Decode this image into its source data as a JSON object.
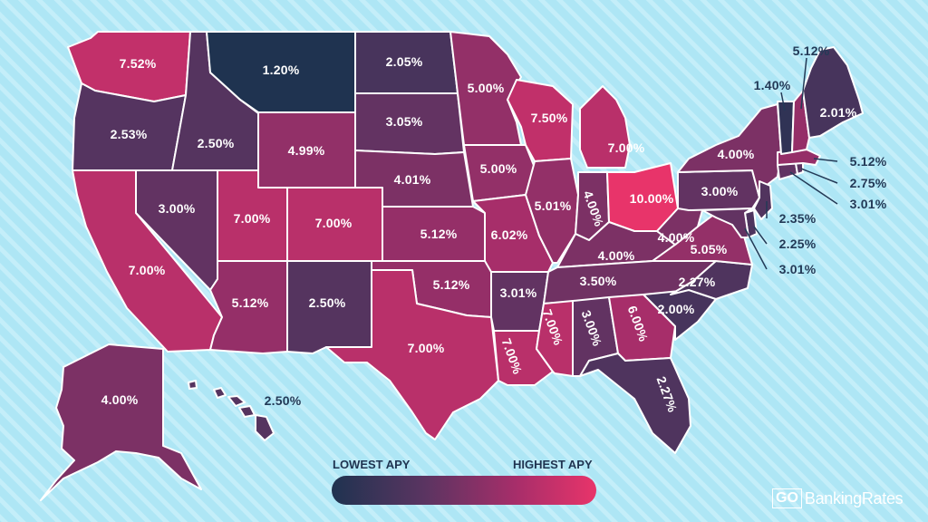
{
  "colors": {
    "background": "#aee6f5",
    "stripe": "#c4eef9",
    "lowest": "#1f3350",
    "highest": "#e8346a",
    "label_dark": "#233a57"
  },
  "legend": {
    "low_label": "LOWEST APY",
    "high_label": "HIGHEST APY"
  },
  "brand": {
    "go": "GO",
    "name": "BankingRates"
  },
  "states": [
    {
      "id": "WA",
      "apy": "7.52%"
    },
    {
      "id": "OR",
      "apy": "2.53%"
    },
    {
      "id": "CA",
      "apy": "7.00%"
    },
    {
      "id": "ID",
      "apy": "2.50%"
    },
    {
      "id": "NV",
      "apy": "3.00%"
    },
    {
      "id": "MT",
      "apy": "1.20%"
    },
    {
      "id": "WY",
      "apy": "4.99%"
    },
    {
      "id": "UT",
      "apy": "7.00%"
    },
    {
      "id": "AZ",
      "apy": "5.12%"
    },
    {
      "id": "CO",
      "apy": "7.00%"
    },
    {
      "id": "NM",
      "apy": "2.50%"
    },
    {
      "id": "ND",
      "apy": "2.05%"
    },
    {
      "id": "SD",
      "apy": "3.05%"
    },
    {
      "id": "NE",
      "apy": "4.01%"
    },
    {
      "id": "KS",
      "apy": "5.12%"
    },
    {
      "id": "OK",
      "apy": "5.12%"
    },
    {
      "id": "TX",
      "apy": "7.00%"
    },
    {
      "id": "MN",
      "apy": "5.00%"
    },
    {
      "id": "IA",
      "apy": "5.00%"
    },
    {
      "id": "MO",
      "apy": "6.02%"
    },
    {
      "id": "AR",
      "apy": "3.01%"
    },
    {
      "id": "LA",
      "apy": "7.00%"
    },
    {
      "id": "WI",
      "apy": "7.50%"
    },
    {
      "id": "IL",
      "apy": "5.01%"
    },
    {
      "id": "MI",
      "apy": "7.00%"
    },
    {
      "id": "IN",
      "apy": "4.00%"
    },
    {
      "id": "OH",
      "apy": "10.00%"
    },
    {
      "id": "KY",
      "apy": "4.00%"
    },
    {
      "id": "TN",
      "apy": "3.50%"
    },
    {
      "id": "MS",
      "apy": "7.00%"
    },
    {
      "id": "AL",
      "apy": "3.00%"
    },
    {
      "id": "GA",
      "apy": "6.00%"
    },
    {
      "id": "FL",
      "apy": "2.27%"
    },
    {
      "id": "SC",
      "apy": "2.00%"
    },
    {
      "id": "NC",
      "apy": "2.27%"
    },
    {
      "id": "VA",
      "apy": "5.05%"
    },
    {
      "id": "WV",
      "apy": "4.00%"
    },
    {
      "id": "PA",
      "apy": "3.00%"
    },
    {
      "id": "NY",
      "apy": "4.00%"
    },
    {
      "id": "VT",
      "apy": "1.40%"
    },
    {
      "id": "NH",
      "apy": "5.12%"
    },
    {
      "id": "ME",
      "apy": "2.01%"
    },
    {
      "id": "MA",
      "apy": "5.12%"
    },
    {
      "id": "RI",
      "apy": "2.75%"
    },
    {
      "id": "CT",
      "apy": "3.01%"
    },
    {
      "id": "NJ",
      "apy": "2.35%"
    },
    {
      "id": "DE",
      "apy": "2.25%"
    },
    {
      "id": "MD",
      "apy": "3.01%"
    },
    {
      "id": "AK",
      "apy": "4.00%"
    },
    {
      "id": "HI",
      "apy": "2.50%"
    }
  ]
}
